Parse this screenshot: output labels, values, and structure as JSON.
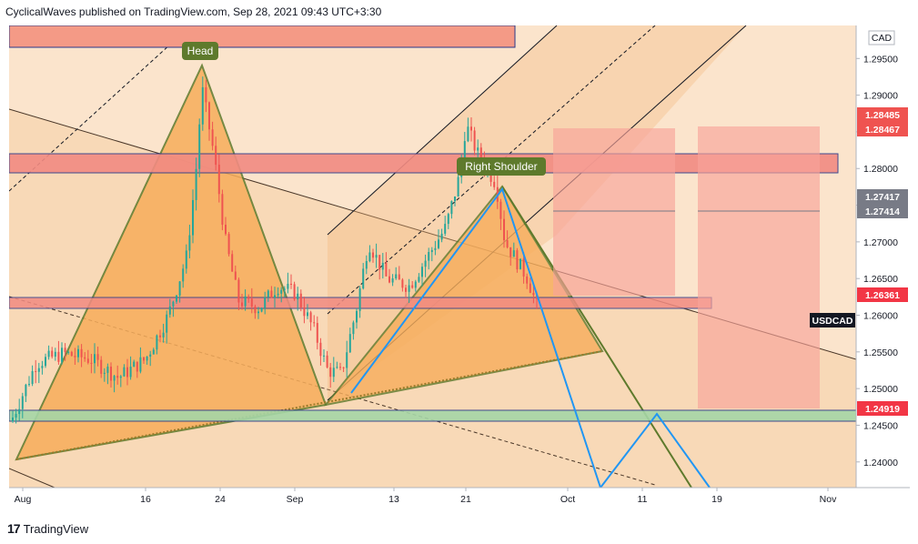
{
  "header": {
    "publisher": "CyclicalWaves published on TradingView.com, Sep 28, 2021 09:43 UTC+3:30"
  },
  "footer": {
    "brand": "TradingView",
    "logo_glyph": "17"
  },
  "chart_data": {
    "type": "candlestick",
    "symbol": "USDCAD",
    "currency": "CAD",
    "ylim": [
      1.2365,
      1.2995
    ],
    "y_ticks": [
      "1.29500",
      "1.29000",
      "1.28500",
      "1.28000",
      "1.27500",
      "1.27000",
      "1.26500",
      "1.26000",
      "1.25500",
      "1.25000",
      "1.24500",
      "1.24000"
    ],
    "x_ticks": [
      "Aug",
      "16",
      "24",
      "Sep",
      "13",
      "21",
      "Oct",
      "11",
      "19",
      "Nov"
    ],
    "annotations": {
      "head": "Head",
      "right_shoulder": "Right Shoulder"
    },
    "price_tags": [
      {
        "label": "1.28485",
        "color": "#ef5350"
      },
      {
        "label": "1.28467",
        "color": "#ef5350"
      },
      {
        "label": "1.27417",
        "color": "#787b86"
      },
      {
        "label": "1.27414",
        "color": "#787b86"
      },
      {
        "label": "1.26361",
        "color": "#f23645"
      },
      {
        "label": "USDCAD",
        "color": "#131722"
      },
      {
        "label": "1.24919",
        "color": "#f23645"
      }
    ],
    "colors": {
      "up": "#26a69a",
      "down": "#ef5350",
      "pattern_fill": "#f7ad5b",
      "pattern_line": "#5e7a2c",
      "projection": "#2196f3",
      "zone_red": "#f28b82",
      "zone_green": "#a5d6a7",
      "channel_fill": "#f8cfa0"
    }
  }
}
